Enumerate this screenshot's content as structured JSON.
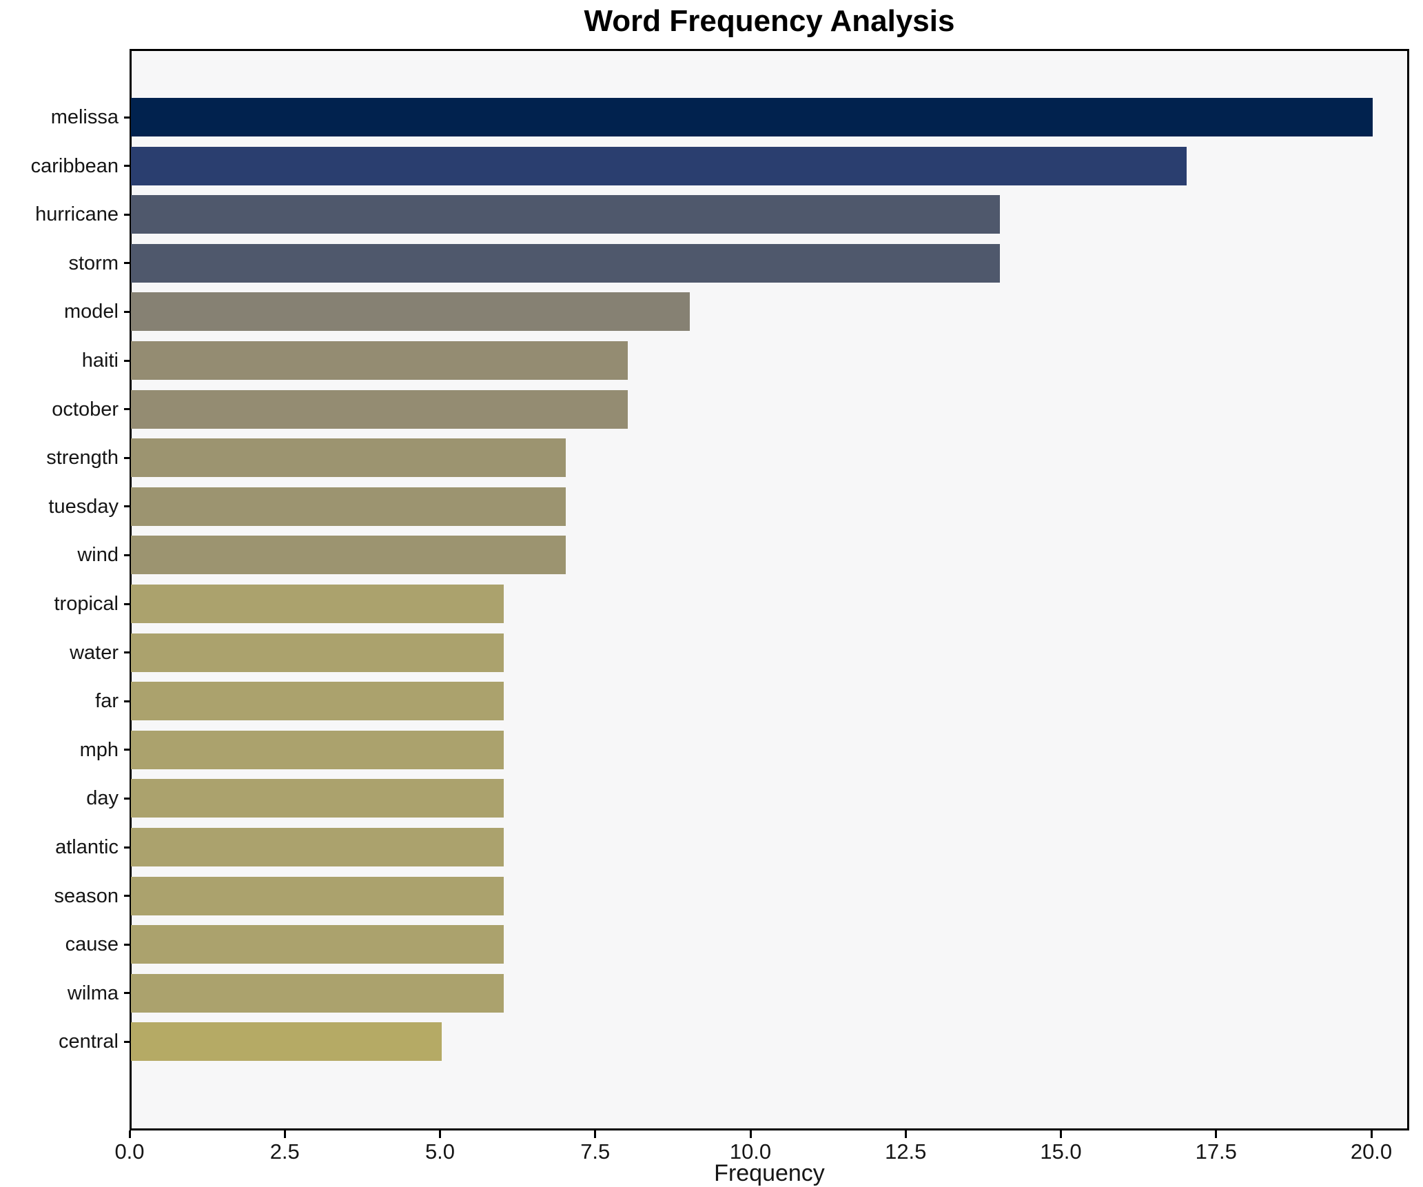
{
  "chart_data": {
    "type": "bar",
    "orientation": "horizontal",
    "title": "Word Frequency Analysis",
    "xlabel": "Frequency",
    "ylabel": "",
    "categories": [
      "melissa",
      "caribbean",
      "hurricane",
      "storm",
      "model",
      "haiti",
      "october",
      "strength",
      "tuesday",
      "wind",
      "tropical",
      "water",
      "far",
      "mph",
      "day",
      "atlantic",
      "season",
      "cause",
      "wilma",
      "central"
    ],
    "values": [
      20,
      17,
      14,
      14,
      9,
      8,
      8,
      7,
      7,
      7,
      6,
      6,
      6,
      6,
      6,
      6,
      6,
      6,
      6,
      5
    ],
    "bar_colors": [
      "#01224e",
      "#2a3e6f",
      "#4f586c",
      "#4f586c",
      "#868173",
      "#948c72",
      "#948c72",
      "#9c9470",
      "#9c9470",
      "#9c9470",
      "#aba26d",
      "#aba26d",
      "#aba26d",
      "#aba26d",
      "#aba26d",
      "#aba26d",
      "#aba26d",
      "#aba26d",
      "#aba26d",
      "#b5aa65"
    ],
    "x_ticks": [
      0,
      2.5,
      5,
      7.5,
      10,
      12.5,
      15,
      17.5,
      20
    ],
    "x_tick_labels": [
      "0.0",
      "2.5",
      "5.0",
      "7.5",
      "10.0",
      "12.5",
      "15.0",
      "17.5",
      "20.0"
    ],
    "xlim": [
      0,
      20.6
    ],
    "grid": false,
    "legend": null,
    "colormap": "cividis",
    "plot_background": "#f7f7f8",
    "figure_background": "#ffffff",
    "bar_height_fraction": 0.8
  }
}
